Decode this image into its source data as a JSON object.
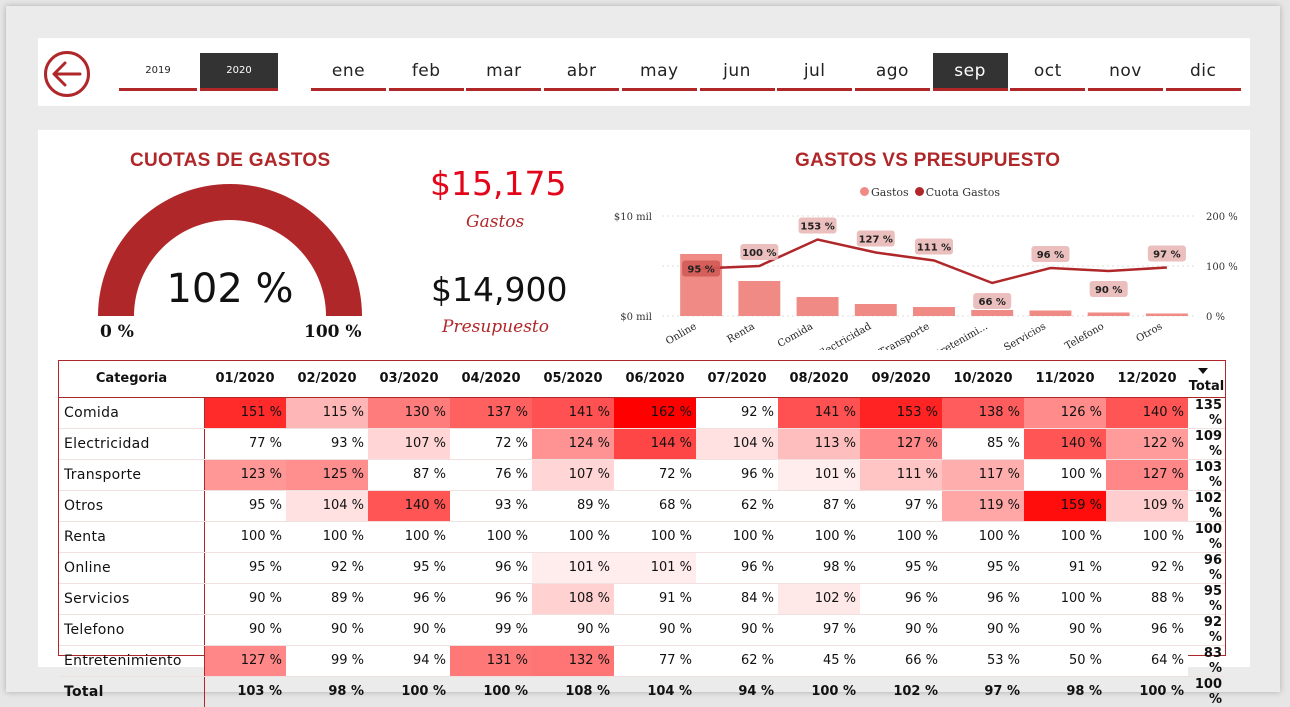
{
  "years": [
    {
      "label": "2019",
      "active": false
    },
    {
      "label": "2020",
      "active": true
    }
  ],
  "months": [
    {
      "label": "ene",
      "active": false
    },
    {
      "label": "feb",
      "active": false
    },
    {
      "label": "mar",
      "active": false
    },
    {
      "label": "abr",
      "active": false
    },
    {
      "label": "may",
      "active": false
    },
    {
      "label": "jun",
      "active": false
    },
    {
      "label": "jul",
      "active": false
    },
    {
      "label": "ago",
      "active": false
    },
    {
      "label": "sep",
      "active": true
    },
    {
      "label": "oct",
      "active": false
    },
    {
      "label": "nov",
      "active": false
    },
    {
      "label": "dic",
      "active": false
    }
  ],
  "gauge": {
    "title": "CUOTAS DE GASTOS",
    "value_text": "102 %",
    "value": 1.02,
    "min_label": "0 %",
    "max_label": "100 %"
  },
  "kpi": {
    "gastos_value": "$15,175",
    "gastos_label": "Gastos",
    "presupuesto_value": "$14,900",
    "presupuesto_label": "Presupuesto"
  },
  "colors": {
    "accent": "#b0272a",
    "bar": "#f08a84",
    "kpi_red": "#e3061a",
    "dark": "#333333"
  },
  "chart_data": {
    "type": "bar",
    "title": "GASTOS VS PRESUPUESTO",
    "legend": [
      "Gastos",
      "Cuota Gastos"
    ],
    "legend_position": "top",
    "categories": [
      "Online",
      "Renta",
      "Comida",
      "Electricidad",
      "Transporte",
      "Entretenimi...",
      "Servicios",
      "Telefono",
      "Otros"
    ],
    "series": [
      {
        "name": "Gastos",
        "axis": "left",
        "values": [
          6200,
          3500,
          1900,
          1200,
          900,
          600,
          550,
          350,
          250
        ]
      },
      {
        "name": "Cuota Gastos",
        "axis": "right",
        "type": "line",
        "values": [
          95,
          100,
          153,
          127,
          111,
          66,
          96,
          90,
          97
        ],
        "labels": [
          "95 %",
          "100 %",
          "153 %",
          "127 %",
          "111 %",
          "66 %",
          "96 %",
          "90 %",
          "97 %"
        ]
      }
    ],
    "y_left_ticks": [
      "$10 mil",
      "$0 mil"
    ],
    "y_left_range": [
      0,
      10000
    ],
    "y_right_ticks": [
      "200 %",
      "100 %",
      "0 %"
    ],
    "y_right_range": [
      0,
      200
    ]
  },
  "table": {
    "header_category": "Categoria",
    "columns": [
      "01/2020",
      "02/2020",
      "03/2020",
      "04/2020",
      "05/2020",
      "06/2020",
      "07/2020",
      "08/2020",
      "09/2020",
      "10/2020",
      "11/2020",
      "12/2020"
    ],
    "header_total": "Total",
    "rows": [
      {
        "name": "Comida",
        "values": [
          "151 %",
          "115 %",
          "130 %",
          "137 %",
          "141 %",
          "162 %",
          "92 %",
          "141 %",
          "153 %",
          "138 %",
          "126 %",
          "140 %"
        ],
        "total": "135 %"
      },
      {
        "name": "Electricidad",
        "values": [
          "77 %",
          "93 %",
          "107 %",
          "72 %",
          "124 %",
          "144 %",
          "104 %",
          "113 %",
          "127 %",
          "85 %",
          "140 %",
          "122 %"
        ],
        "total": "109 %"
      },
      {
        "name": "Transporte",
        "values": [
          "123 %",
          "125 %",
          "87 %",
          "76 %",
          "107 %",
          "72 %",
          "96 %",
          "101 %",
          "111 %",
          "117 %",
          "100 %",
          "127 %"
        ],
        "total": "103 %"
      },
      {
        "name": "Otros",
        "values": [
          "95 %",
          "104 %",
          "140 %",
          "93 %",
          "89 %",
          "68 %",
          "62 %",
          "87 %",
          "97 %",
          "119 %",
          "159 %",
          "109 %"
        ],
        "total": "102 %"
      },
      {
        "name": "Renta",
        "values": [
          "100 %",
          "100 %",
          "100 %",
          "100 %",
          "100 %",
          "100 %",
          "100 %",
          "100 %",
          "100 %",
          "100 %",
          "100 %",
          "100 %"
        ],
        "total": "100 %"
      },
      {
        "name": "Online",
        "values": [
          "95 %",
          "92 %",
          "95 %",
          "96 %",
          "101 %",
          "101 %",
          "96 %",
          "98 %",
          "95 %",
          "95 %",
          "91 %",
          "92 %"
        ],
        "total": "96 %"
      },
      {
        "name": "Servicios",
        "values": [
          "90 %",
          "89 %",
          "96 %",
          "96 %",
          "108 %",
          "91 %",
          "84 %",
          "102 %",
          "96 %",
          "96 %",
          "100 %",
          "88 %"
        ],
        "total": "95 %"
      },
      {
        "name": "Telefono",
        "values": [
          "90 %",
          "90 %",
          "90 %",
          "99 %",
          "90 %",
          "90 %",
          "90 %",
          "97 %",
          "90 %",
          "90 %",
          "90 %",
          "96 %"
        ],
        "total": "92 %"
      },
      {
        "name": "Entretenimiento",
        "values": [
          "127 %",
          "99 %",
          "94 %",
          "131 %",
          "132 %",
          "77 %",
          "62 %",
          "45 %",
          "66 %",
          "53 %",
          "50 %",
          "64 %"
        ],
        "total": "83 %"
      }
    ],
    "total_row": {
      "name": "Total",
      "values": [
        "103 %",
        "98 %",
        "100 %",
        "100 %",
        "108 %",
        "104 %",
        "94 %",
        "100 %",
        "102 %",
        "97 %",
        "98 %",
        "100 %"
      ],
      "total": "100 %"
    }
  }
}
